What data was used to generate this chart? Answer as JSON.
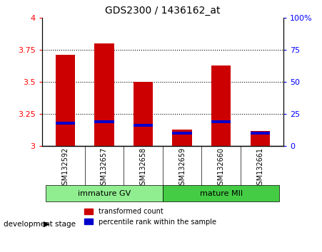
{
  "title": "GDS2300 / 1436162_at",
  "samples": [
    "GSM132592",
    "GSM132657",
    "GSM132658",
    "GSM132659",
    "GSM132660",
    "GSM132661"
  ],
  "red_values": [
    3.71,
    3.8,
    3.5,
    3.13,
    3.63,
    3.12
  ],
  "blue_values": [
    3.18,
    3.19,
    3.16,
    3.1,
    3.19,
    3.1
  ],
  "bar_bottom": 3.0,
  "ylim": [
    3.0,
    4.0
  ],
  "yticks_left": [
    3.0,
    3.25,
    3.5,
    3.75,
    4.0
  ],
  "ytick_labels_left": [
    "3",
    "3.25",
    "3.5",
    "3.75",
    "4"
  ],
  "yticks_right": [
    0,
    25,
    50,
    75,
    100
  ],
  "ytick_labels_right": [
    "0",
    "25",
    "50",
    "75",
    "100%"
  ],
  "group_label": "development stage",
  "groups": [
    {
      "label": "immature GV",
      "start": 0,
      "end": 2,
      "color": "#90EE90"
    },
    {
      "label": "mature MII",
      "start": 3,
      "end": 5,
      "color": "#44CC44"
    }
  ],
  "red_color": "#CC0000",
  "blue_color": "#0000CC",
  "bar_width": 0.5,
  "sample_bg_color": "#d0d0d0",
  "plot_bg": "#ffffff",
  "legend": [
    "transformed count",
    "percentile rank within the sample"
  ],
  "blue_bar_height": 0.022
}
